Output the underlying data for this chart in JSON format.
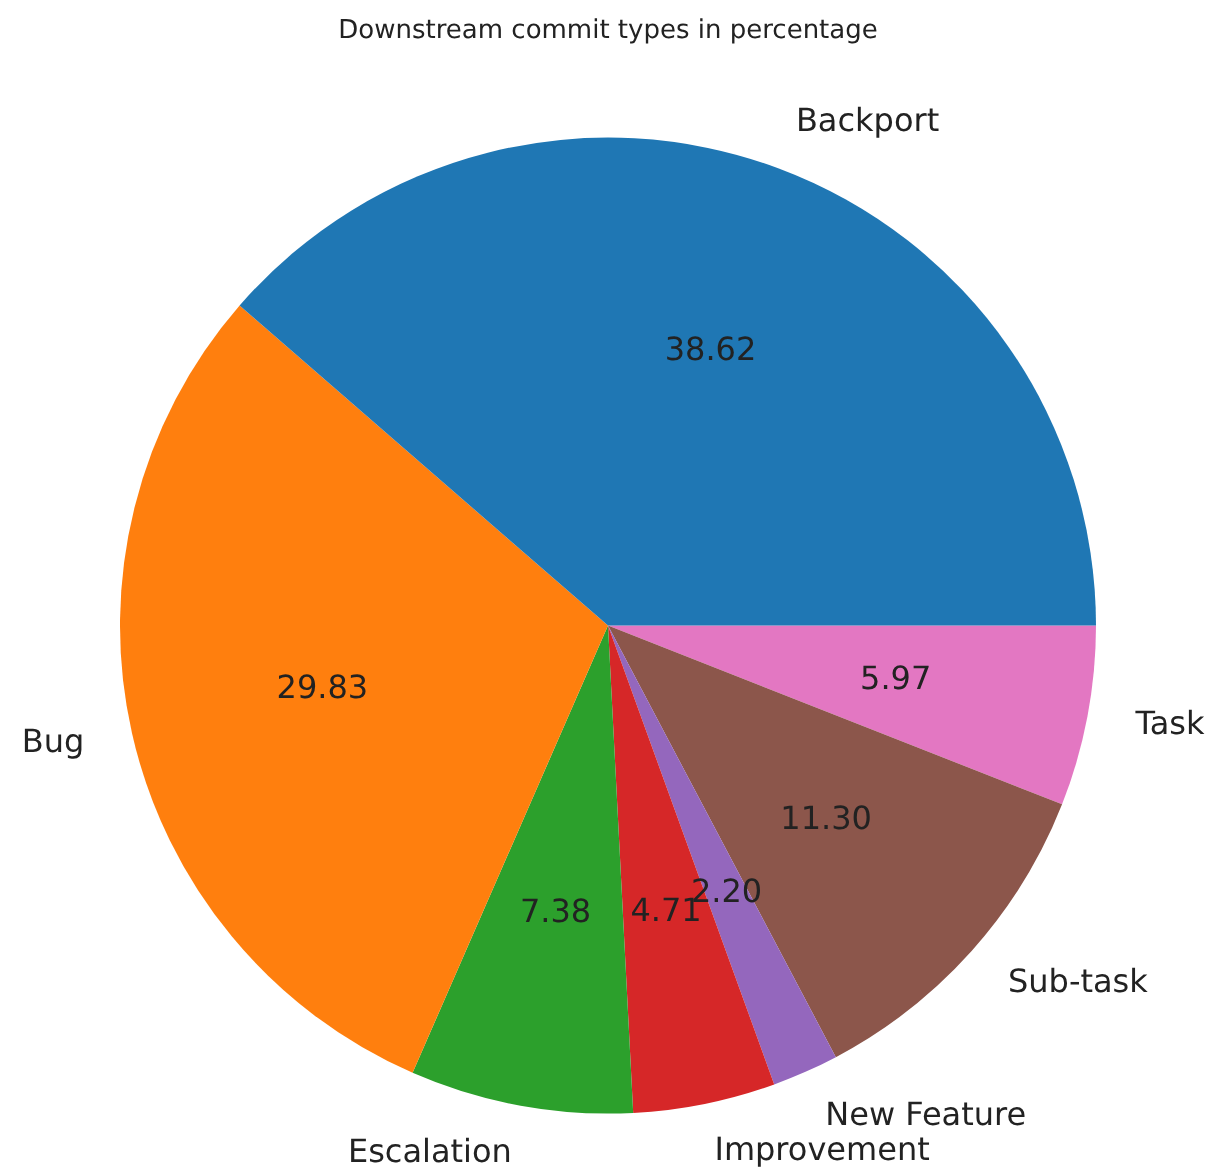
{
  "chart_data": {
    "type": "pie",
    "title": "Downstream commit types in percentage",
    "categories": [
      "Backport",
      "Bug",
      "Escalation",
      "Improvement",
      "New Feature",
      "Sub-task",
      "Task"
    ],
    "values": [
      38.62,
      29.83,
      7.38,
      4.71,
      2.2,
      11.3,
      5.97
    ],
    "value_labels": [
      "38.62",
      "29.83",
      "7.38",
      "4.71",
      "2.20",
      "11.30",
      "5.97"
    ],
    "colors": [
      "#1f77b4",
      "#ff7f0e",
      "#2ca02c",
      "#d62728",
      "#9467bd",
      "#8c564b",
      "#e377c2"
    ],
    "legend": false
  }
}
